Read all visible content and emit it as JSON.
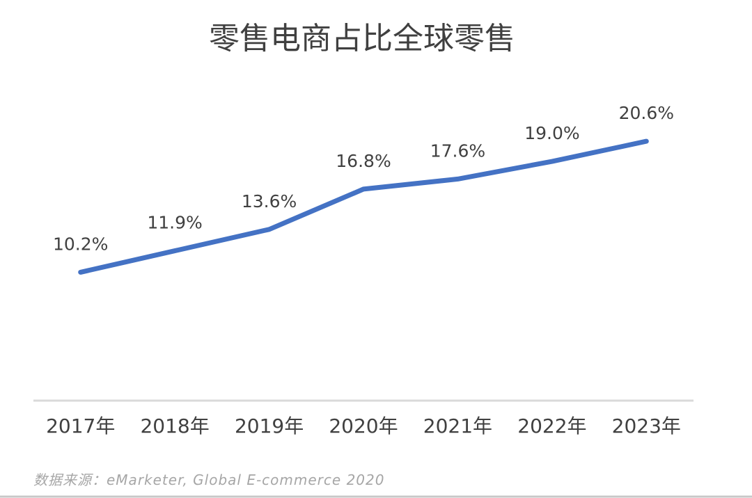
{
  "chart_data": {
    "type": "line",
    "title": "零售电商占比全球零售",
    "xlabel": "",
    "ylabel": "",
    "categories": [
      "2017年",
      "2018年",
      "2019年",
      "2020年",
      "2021年",
      "2022年",
      "2023年"
    ],
    "values": [
      10.2,
      11.9,
      13.6,
      16.8,
      17.6,
      19.0,
      20.6
    ],
    "data_labels": [
      "10.2%",
      "11.9%",
      "13.6%",
      "16.8%",
      "17.6%",
      "19.0%",
      "20.6%"
    ],
    "ylim": [
      0,
      25
    ],
    "grid": false,
    "legend": "none"
  },
  "colors": {
    "line": "#4472c4",
    "axis": "#d9d9d9",
    "text": "#404040",
    "source": "#a6a6a6",
    "bottom_border": "#c8c8c8"
  },
  "source": "数据来源：eMarketer, Global E-commerce 2020"
}
